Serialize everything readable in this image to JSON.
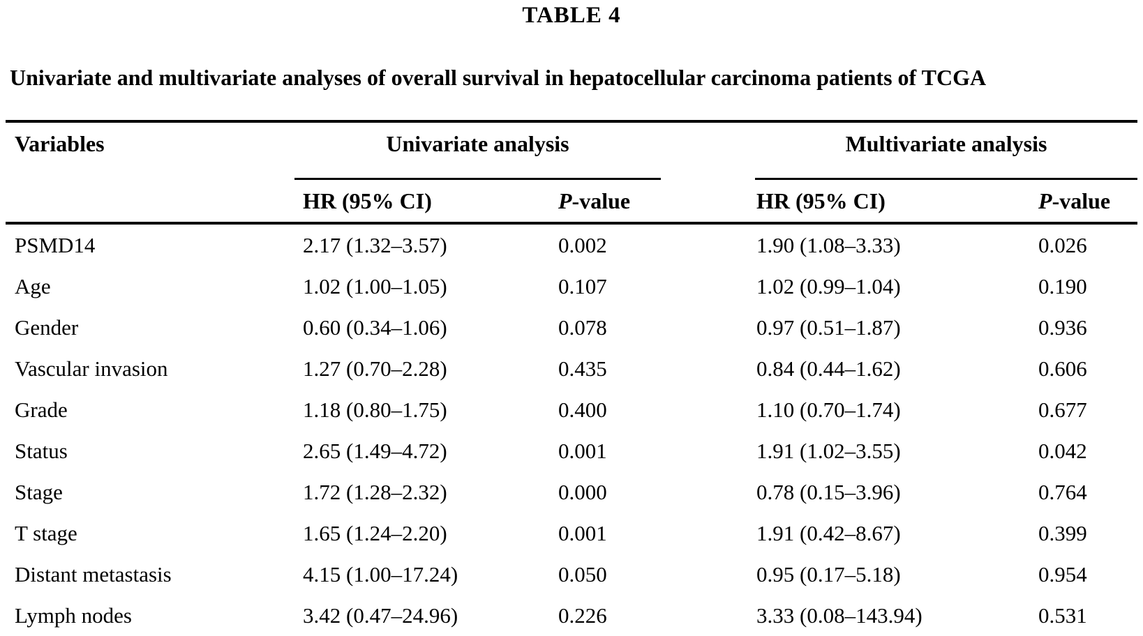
{
  "page": {
    "title": "TABLE 4",
    "caption": "Univariate and multivariate analyses of overall survival in hepatocellular carcinoma patients of TCGA"
  },
  "table": {
    "variables_header": "Variables",
    "group_headers": {
      "univariate": "Univariate analysis",
      "multivariate": "Multivariate analysis"
    },
    "sub_headers": {
      "hr_label": "HR (95% CI)",
      "p_italic": "P",
      "p_rest": "-value"
    },
    "rows": [
      {
        "variable": "PSMD14",
        "uni_hr": "2.17 (1.32–3.57)",
        "uni_p": "0.002",
        "multi_hr": "1.90 (1.08–3.33)",
        "multi_p": "0.026"
      },
      {
        "variable": "Age",
        "uni_hr": "1.02 (1.00–1.05)",
        "uni_p": "0.107",
        "multi_hr": "1.02 (0.99–1.04)",
        "multi_p": "0.190"
      },
      {
        "variable": "Gender",
        "uni_hr": "0.60 (0.34–1.06)",
        "uni_p": "0.078",
        "multi_hr": "0.97 (0.51–1.87)",
        "multi_p": "0.936"
      },
      {
        "variable": "Vascular invasion",
        "uni_hr": "1.27 (0.70–2.28)",
        "uni_p": "0.435",
        "multi_hr": "0.84 (0.44–1.62)",
        "multi_p": "0.606"
      },
      {
        "variable": "Grade",
        "uni_hr": "1.18 (0.80–1.75)",
        "uni_p": "0.400",
        "multi_hr": "1.10 (0.70–1.74)",
        "multi_p": "0.677"
      },
      {
        "variable": "Status",
        "uni_hr": "2.65 (1.49–4.72)",
        "uni_p": "0.001",
        "multi_hr": "1.91 (1.02–3.55)",
        "multi_p": "0.042"
      },
      {
        "variable": "Stage",
        "uni_hr": "1.72 (1.28–2.32)",
        "uni_p": "0.000",
        "multi_hr": "0.78 (0.15–3.96)",
        "multi_p": "0.764"
      },
      {
        "variable": "T stage",
        "uni_hr": "1.65 (1.24–2.20)",
        "uni_p": "0.001",
        "multi_hr": "1.91 (0.42–8.67)",
        "multi_p": "0.399"
      },
      {
        "variable": "Distant metastasis",
        "uni_hr": "4.15 (1.00–17.24)",
        "uni_p": "0.050",
        "multi_hr": "0.95 (0.17–5.18)",
        "multi_p": "0.954"
      },
      {
        "variable": "Lymph nodes",
        "uni_hr": "3.42 (0.47–24.96)",
        "uni_p": "0.226",
        "multi_hr": "3.33 (0.08–143.94)",
        "multi_p": "0.531"
      }
    ]
  },
  "colors": {
    "text": "#000000",
    "background": "#ffffff",
    "rule": "#000000"
  }
}
